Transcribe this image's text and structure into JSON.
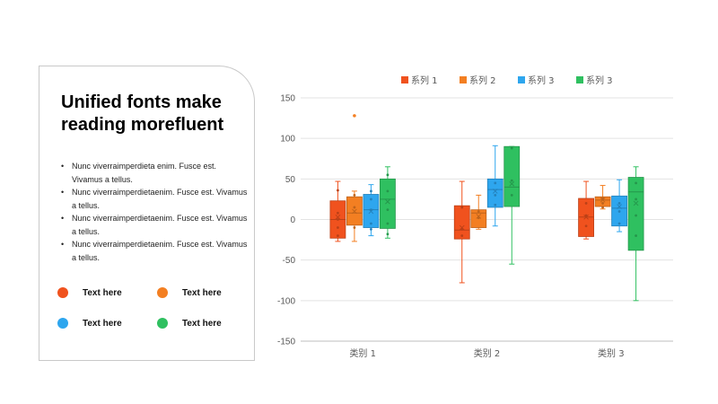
{
  "card": {
    "title": "Unified fonts make reading morefluent",
    "bullets": [
      "Nunc viverraimperdieta enim. Fusce est. Vivamus a tellus.",
      "Nunc viverraimperdietaenim. Fusce est. Vivamus a tellus.",
      "Nunc viverraimperdietaenim. Fusce est. Vivamus a tellus.",
      "Nunc viverraimperdietaenim. Fusce est. Vivamus a tellus."
    ],
    "legend": [
      {
        "label": "Text here",
        "color": "#F0521E"
      },
      {
        "label": "Text here",
        "color": "#F37F22"
      },
      {
        "label": "Text here",
        "color": "#2EA6EE"
      },
      {
        "label": "Text here",
        "color": "#2FC060"
      }
    ]
  },
  "chart_data": {
    "type": "box",
    "categories": [
      "类别 1",
      "类别 2",
      "类别 3"
    ],
    "ylim": [
      -150,
      150
    ],
    "yticks": [
      -150,
      -100,
      -50,
      0,
      50,
      100,
      150
    ],
    "grid": true,
    "legend_position": "top",
    "series": [
      {
        "name": "系列 1",
        "color": "#F0521E",
        "boxes": [
          {
            "min": -27,
            "q1": -23,
            "median": 0,
            "q3": 23,
            "max": 47,
            "mean": 3,
            "points": [
              36,
              8,
              0,
              -10,
              -20
            ],
            "outliers": []
          },
          {
            "min": -78,
            "q1": -24,
            "median": -13,
            "q3": 17,
            "max": 47,
            "mean": -10,
            "points": [
              15,
              -12,
              -20
            ],
            "outliers": []
          },
          {
            "min": -24,
            "q1": -21,
            "median": 3,
            "q3": 26,
            "max": 47,
            "mean": 3,
            "points": [
              20,
              5,
              -8
            ],
            "outliers": []
          }
        ]
      },
      {
        "name": "系列 2",
        "color": "#F37F22",
        "boxes": [
          {
            "min": -27,
            "q1": -7,
            "median": 8,
            "q3": 28,
            "max": 35,
            "mean": 10,
            "points": [
              30,
              15,
              -10
            ],
            "outliers": [
              128
            ]
          },
          {
            "min": -12,
            "q1": -10,
            "median": 8,
            "q3": 12,
            "max": 30,
            "mean": 4,
            "points": [
              10,
              2
            ],
            "outliers": []
          },
          {
            "min": 13,
            "q1": 16,
            "median": 24,
            "q3": 28,
            "max": 42,
            "mean": 24,
            "points": [
              26,
              20,
              15
            ],
            "outliers": []
          }
        ]
      },
      {
        "name": "系列 3",
        "color": "#2EA6EE",
        "boxes": [
          {
            "min": -20,
            "q1": -10,
            "median": 12,
            "q3": 31,
            "max": 43,
            "mean": 10,
            "points": [
              35,
              25,
              12,
              -5,
              -12
            ],
            "outliers": []
          },
          {
            "min": -8,
            "q1": 15,
            "median": 37,
            "q3": 50,
            "max": 91,
            "mean": 35,
            "points": [
              45,
              30,
              18
            ],
            "outliers": []
          },
          {
            "min": -15,
            "q1": -8,
            "median": 14,
            "q3": 29,
            "max": 49,
            "mean": 16,
            "points": [
              20,
              10,
              -5
            ],
            "outliers": []
          }
        ]
      },
      {
        "name": "系列 3",
        "color": "#2FC060",
        "boxes": [
          {
            "min": -23,
            "q1": -11,
            "median": 25,
            "q3": 50,
            "max": 65,
            "mean": 22,
            "points": [
              55,
              35,
              12,
              -5,
              -18
            ],
            "outliers": []
          },
          {
            "min": -55,
            "q1": 16,
            "median": 40,
            "q3": 90,
            "max": 90,
            "mean": 44,
            "points": [
              88,
              48,
              30
            ],
            "outliers": []
          },
          {
            "min": -100,
            "q1": -38,
            "median": 34,
            "q3": 52,
            "max": 65,
            "mean": 20,
            "points": [
              45,
              25,
              5,
              -20
            ],
            "outliers": []
          }
        ]
      }
    ]
  }
}
